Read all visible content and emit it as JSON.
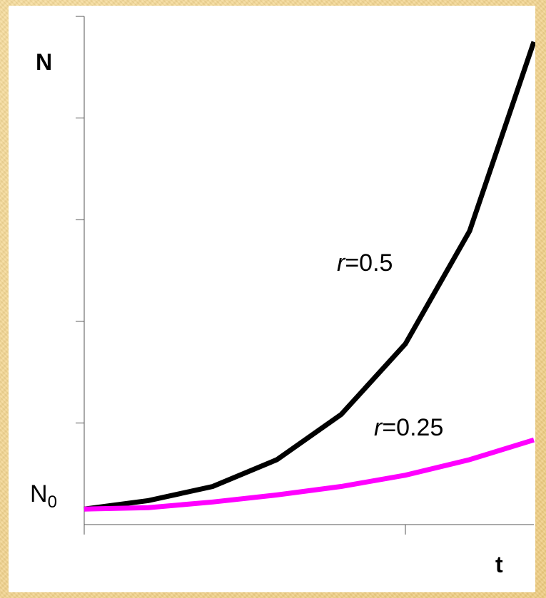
{
  "chart_data": {
    "type": "line",
    "xlabel": "t",
    "ylabel": "N",
    "y0_label": "N",
    "y0_label_sub": "0",
    "x": [
      0,
      1,
      2,
      3,
      4,
      5,
      6,
      7
    ],
    "xlim": [
      0,
      7
    ],
    "ylim": [
      0,
      18
    ],
    "grid": false,
    "series": [
      {
        "name": "=0.5",
        "name_prefix": "r",
        "color": "#000000",
        "values": [
          0.55,
          0.85,
          1.35,
          2.3,
          3.9,
          6.4,
          10.4,
          17.1
        ]
      },
      {
        "name": "=0.25",
        "name_prefix": "r",
        "color": "#ff00ff",
        "values": [
          0.55,
          0.6,
          0.8,
          1.05,
          1.35,
          1.75,
          2.3,
          3.0
        ]
      }
    ]
  }
}
